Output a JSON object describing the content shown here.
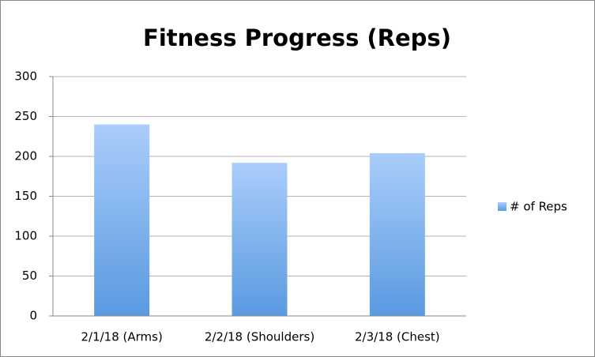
{
  "chart_data": {
    "type": "bar",
    "title": "Fitness Progress (Reps)",
    "categories": [
      "2/1/18 (Arms)",
      "2/2/18 (Shoulders)",
      "2/3/18 (Chest)"
    ],
    "series": [
      {
        "name": "# of Reps",
        "color": "#5a9ae0",
        "values": [
          240,
          192,
          204
        ]
      }
    ],
    "ylim": [
      0,
      300
    ],
    "yticks": [
      0,
      50,
      100,
      150,
      200,
      250,
      300
    ],
    "grid": true,
    "legend": "right"
  }
}
